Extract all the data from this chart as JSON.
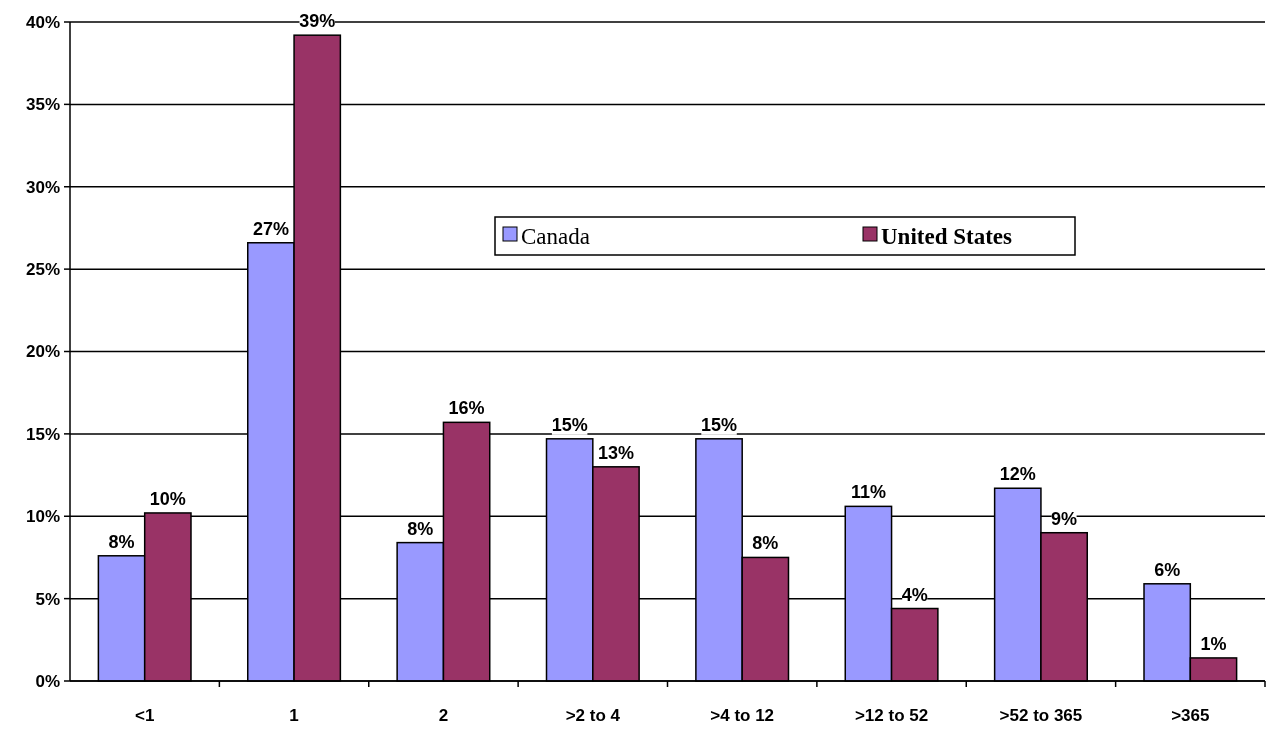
{
  "chart_data": {
    "type": "bar",
    "categories": [
      "<1",
      "1",
      "2",
      ">2 to 4",
      ">4 to 12",
      ">12 to 52",
      ">52 to 365",
      ">365"
    ],
    "series": [
      {
        "name": "Canada",
        "color": "#9999ff",
        "values": [
          7.6,
          26.6,
          8.4,
          14.7,
          14.7,
          10.6,
          11.7,
          5.9
        ],
        "value_labels": [
          "8%",
          "27%",
          "8%",
          "15%",
          "15%",
          "11%",
          "12%",
          "6%"
        ]
      },
      {
        "name": "United States",
        "color": "#993366",
        "values": [
          10.2,
          39.2,
          15.7,
          13.0,
          7.5,
          4.4,
          9.0,
          1.4
        ],
        "value_labels": [
          "10%",
          "39%",
          "16%",
          "13%",
          "8%",
          "4%",
          "9%",
          "1%"
        ]
      }
    ],
    "ylim": [
      0,
      40
    ],
    "yticks": [
      {
        "value": 0,
        "label": "0%"
      },
      {
        "value": 5,
        "label": "5%"
      },
      {
        "value": 10,
        "label": "10%"
      },
      {
        "value": 15,
        "label": "15%"
      },
      {
        "value": 20,
        "label": "20%"
      },
      {
        "value": 25,
        "label": "25%"
      },
      {
        "value": 30,
        "label": "30%"
      },
      {
        "value": 35,
        "label": "35%"
      },
      {
        "value": 40,
        "label": "40%"
      }
    ],
    "grid": "y",
    "legend": "top"
  }
}
